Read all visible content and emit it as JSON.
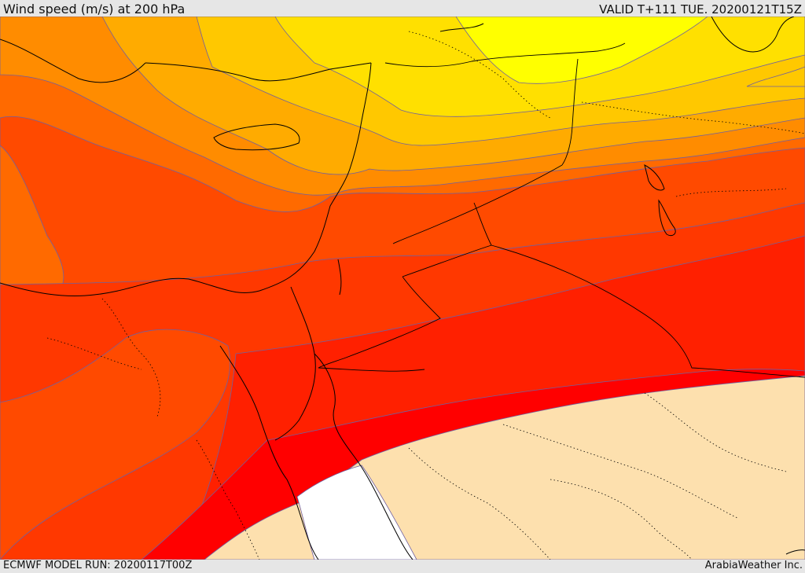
{
  "header": {
    "title": "Wind speed (m/s) at 200 hPa",
    "valid": "VALID T+111 TUE. 20200121T15Z"
  },
  "footer": {
    "run": "ECMWF MODEL RUN: 20200117T00Z",
    "credit": "ArabiaWeather Inc."
  },
  "colors": {
    "lt10": "#ffffff",
    "band_30_40": "#fde0ae",
    "band_60_70": "#ff0000",
    "band_55_60": "#ff2000",
    "band_50_55": "#ff3800",
    "band_45_50": "#ff4a00",
    "band_40_45": "#ff6a00",
    "band_35_40": "#ff8c00",
    "band_30_35": "#ffab00",
    "band_25_30": "#ffc800",
    "band_20_25": "#ffe000",
    "band_15_20": "#ffff00",
    "contour": "#7060a0",
    "coast": "#000000"
  }
}
